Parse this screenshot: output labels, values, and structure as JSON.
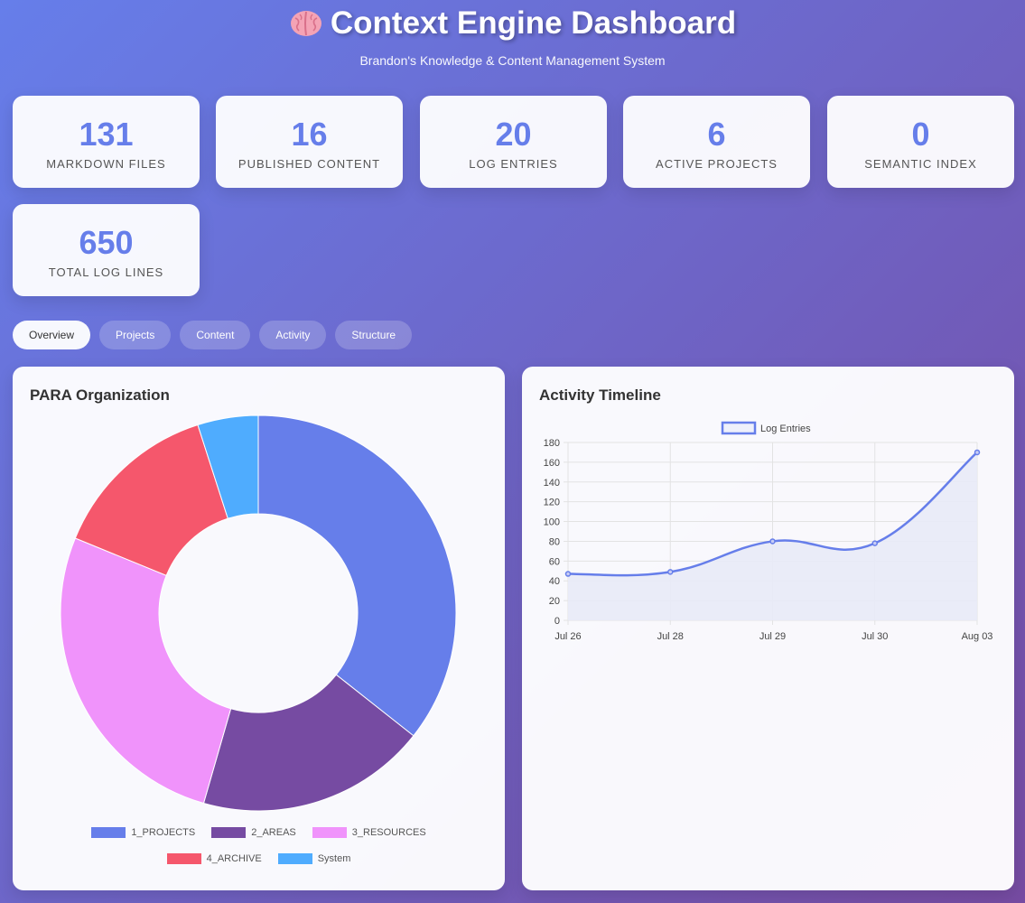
{
  "header": {
    "title": "Context Engine Dashboard",
    "subtitle": "Brandon's Knowledge & Content Management System"
  },
  "stats": [
    {
      "value": "131",
      "label": "MARKDOWN FILES"
    },
    {
      "value": "16",
      "label": "PUBLISHED CONTENT"
    },
    {
      "value": "20",
      "label": "LOG ENTRIES"
    },
    {
      "value": "6",
      "label": "ACTIVE PROJECTS"
    },
    {
      "value": "0",
      "label": "SEMANTIC INDEX"
    },
    {
      "value": "650",
      "label": "TOTAL LOG LINES"
    }
  ],
  "tabs": [
    {
      "label": "Overview",
      "active": true
    },
    {
      "label": "Projects"
    },
    {
      "label": "Content"
    },
    {
      "label": "Activity"
    },
    {
      "label": "Structure"
    }
  ],
  "para_panel": {
    "title": "PARA Organization"
  },
  "timeline_panel": {
    "title": "Activity Timeline"
  },
  "chart_data": [
    {
      "type": "pie",
      "title": "PARA Organization",
      "categories": [
        "1_PROJECTS",
        "2_AREAS",
        "3_RESOURCES",
        "4_ARCHIVE",
        "System"
      ],
      "values": [
        36,
        19,
        27,
        14,
        5
      ],
      "colors": [
        "#667eea",
        "#764ba2",
        "#f093fb",
        "#f5576c",
        "#4facfe"
      ],
      "legend": "bottom"
    },
    {
      "type": "line",
      "title": "Activity Timeline",
      "x": [
        "Jul 26",
        "Jul 28",
        "Jul 29",
        "Jul 30",
        "Aug 03"
      ],
      "series": [
        {
          "name": "Log Entries",
          "values": [
            47,
            49,
            80,
            78,
            170
          ]
        }
      ],
      "ylim": [
        0,
        180
      ],
      "yticks": [
        0,
        20,
        40,
        60,
        80,
        100,
        120,
        140,
        160,
        180
      ],
      "grid": true,
      "legend": "top",
      "line_color": "#667eea",
      "fill_color": "#e8eaf7"
    }
  ]
}
